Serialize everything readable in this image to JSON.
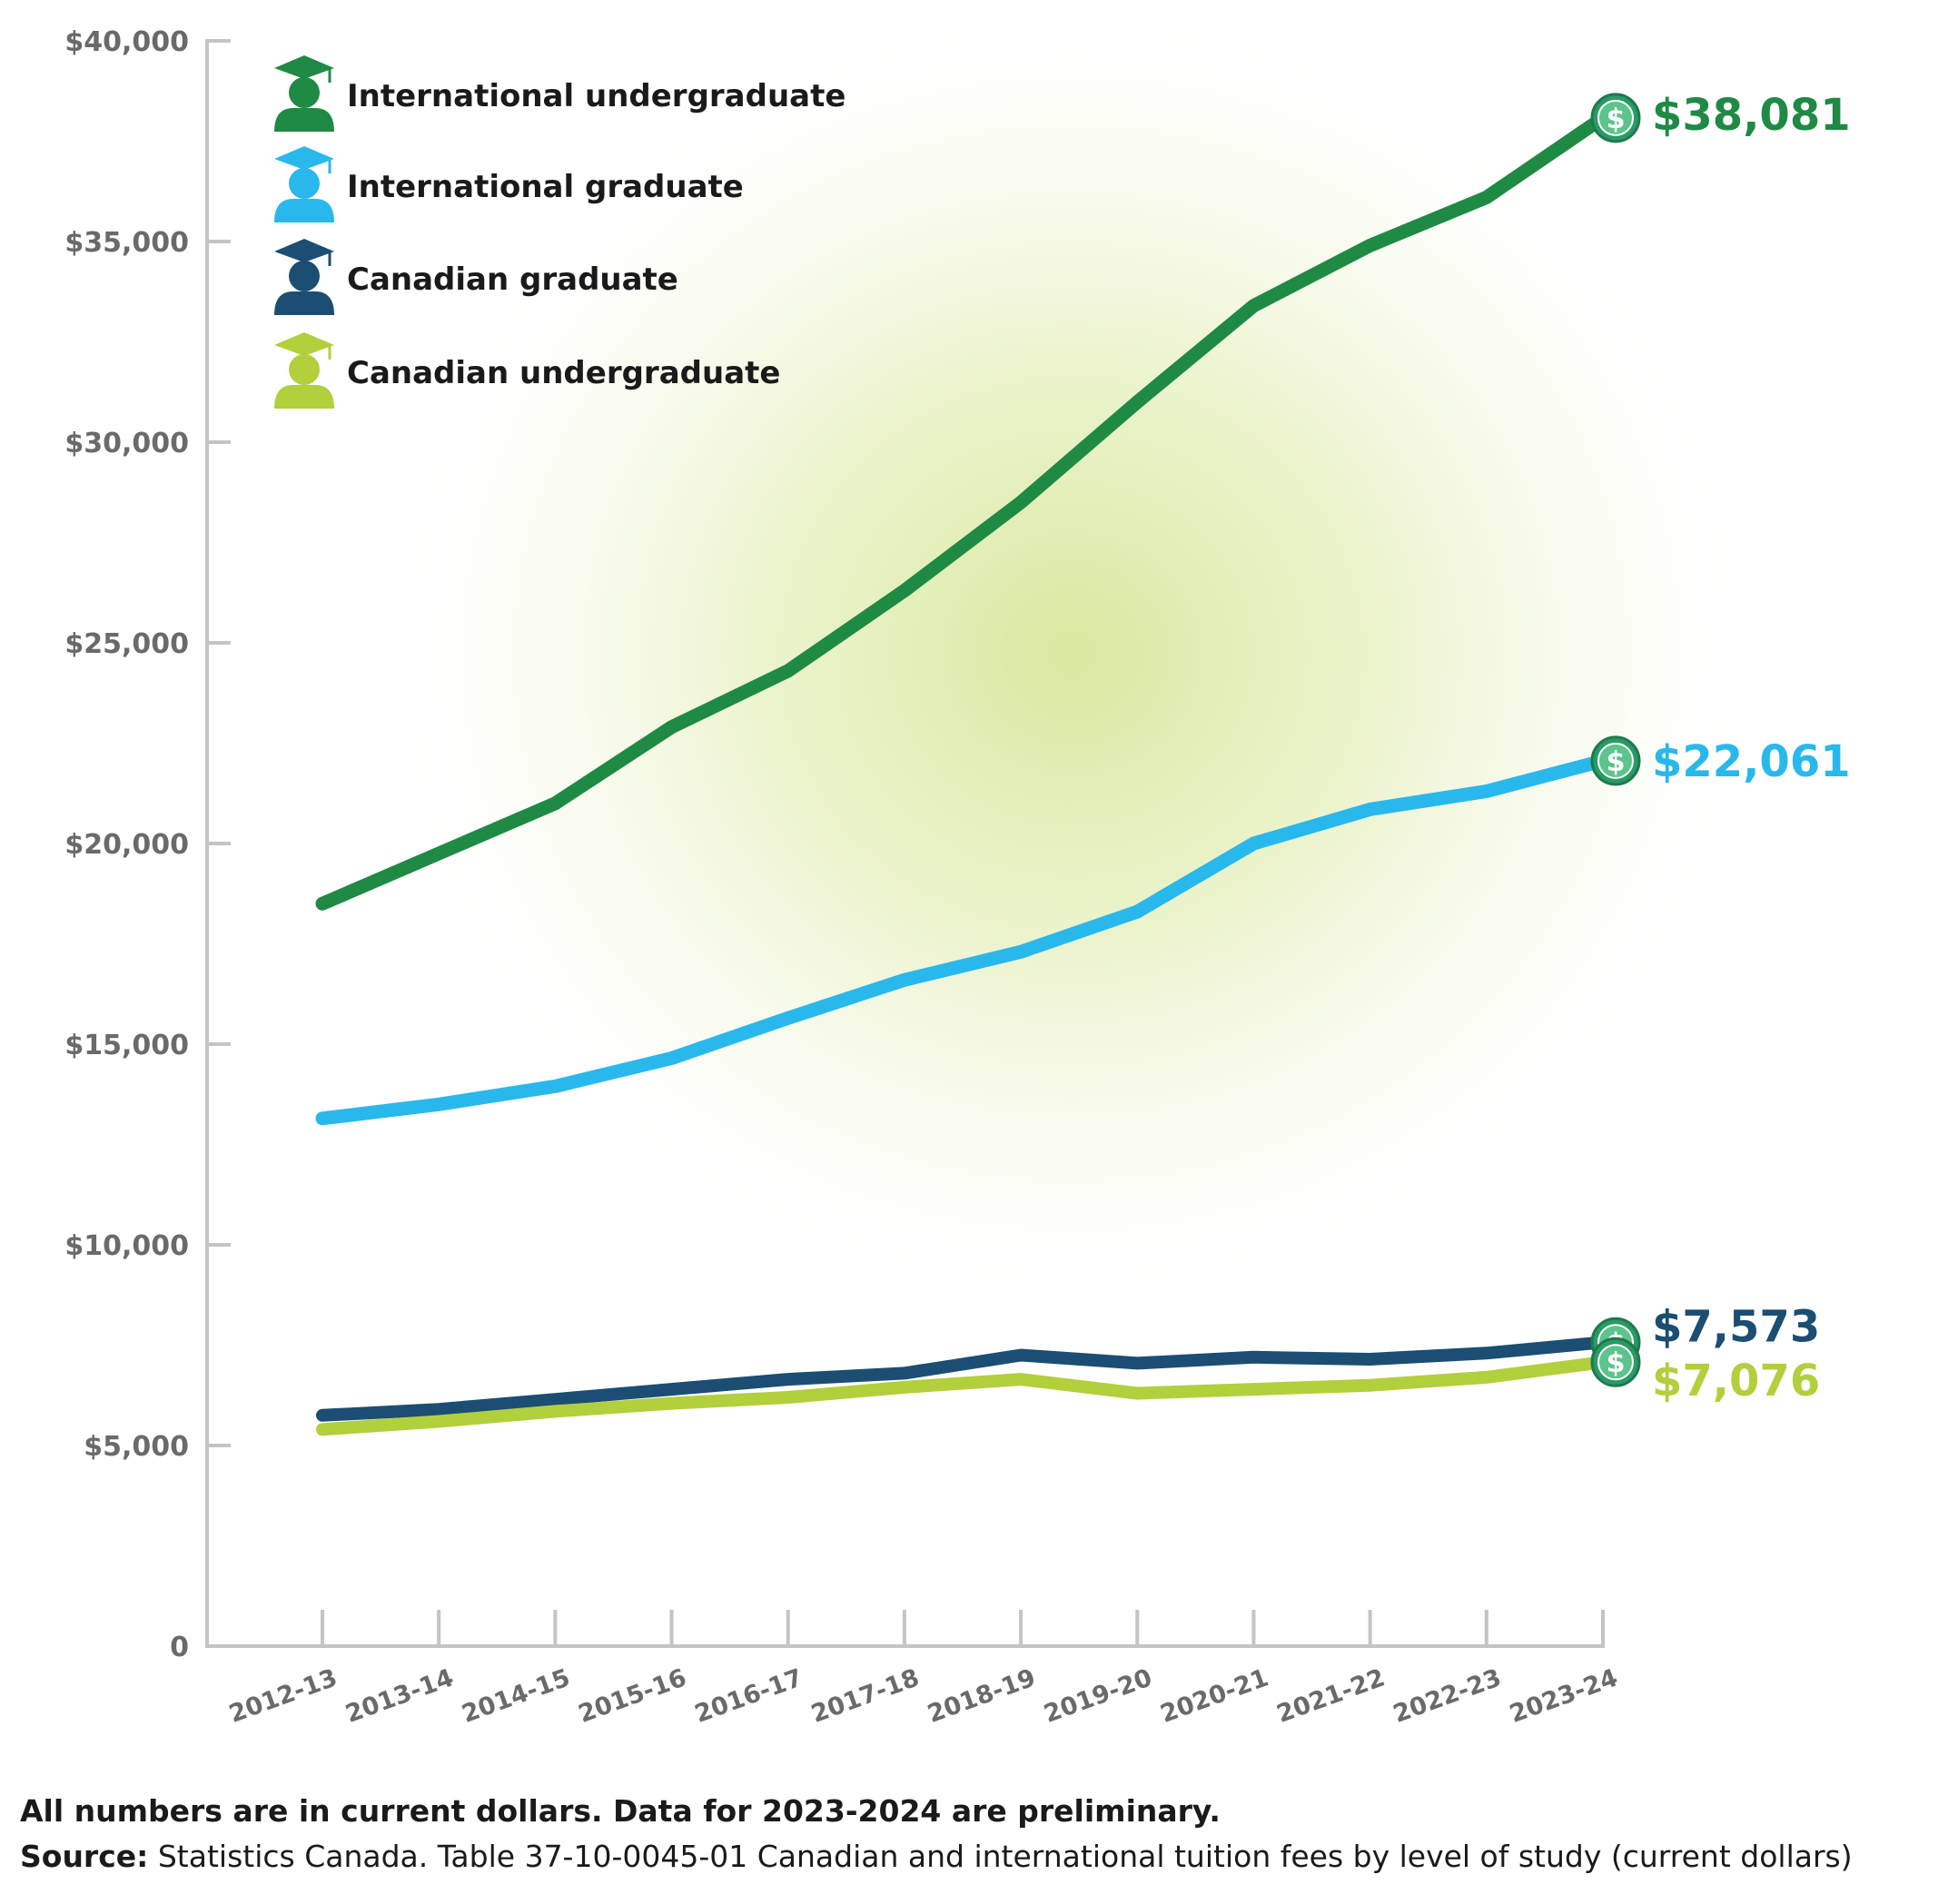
{
  "chart_data": {
    "type": "line",
    "categories": [
      "2012-13",
      "2013-14",
      "2014-15",
      "2015-16",
      "2016-17",
      "2017-18",
      "2018-19",
      "2019-20",
      "2020-21",
      "2021-22",
      "2022-23",
      "2023-24"
    ],
    "series": [
      {
        "name": "International undergraduate",
        "color": "#1e8a44",
        "icon": "graduate-student-icon",
        "values": [
          18500,
          19750,
          21000,
          22900,
          24300,
          26300,
          28500,
          31000,
          33400,
          34900,
          36100,
          38081
        ],
        "end_label": "$38,081"
      },
      {
        "name": "International graduate",
        "color": "#29b8ec",
        "icon": "graduate-student-icon",
        "values": [
          13150,
          13500,
          13950,
          14650,
          15650,
          16600,
          17300,
          18300,
          20000,
          20850,
          21300,
          22061
        ],
        "end_label": "$22,061"
      },
      {
        "name": "Canadian graduate",
        "color": "#1b4e72",
        "icon": "graduate-student-icon",
        "values": [
          5750,
          5900,
          6150,
          6400,
          6650,
          6800,
          7250,
          7050,
          7200,
          7150,
          7300,
          7573
        ],
        "end_label": "$7,573"
      },
      {
        "name": "Canadian undergraduate",
        "color": "#b2cf3c",
        "icon": "graduate-student-icon",
        "values": [
          5400,
          5600,
          5850,
          6050,
          6200,
          6450,
          6650,
          6300,
          6400,
          6500,
          6700,
          7076
        ],
        "end_label": "$7,076"
      }
    ],
    "y_ticks": [
      "0",
      "$5,000",
      "$10,000",
      "$15,000",
      "$20,000",
      "$25,000",
      "$30,000",
      "$35,000",
      "$40,000"
    ],
    "ylim": [
      0,
      40000
    ],
    "grid": false,
    "legend_position": "top-left",
    "marker_icon": "dollar-coin-icon",
    "colors": {
      "axis": "#c4c4c6",
      "tick_label": "#6a6a6a",
      "glow": "#dbe9a4",
      "coin": "#2a9a66",
      "coin_inner": "#5cc48c"
    }
  },
  "footnote": {
    "note": "All numbers are in current dollars. Data for 2023-2024 are preliminary.",
    "source_label": "Source:",
    "source_text": " Statistics Canada. Table 37-10-0045-01 Canadian and international tuition fees by level of study (current dollars)"
  }
}
